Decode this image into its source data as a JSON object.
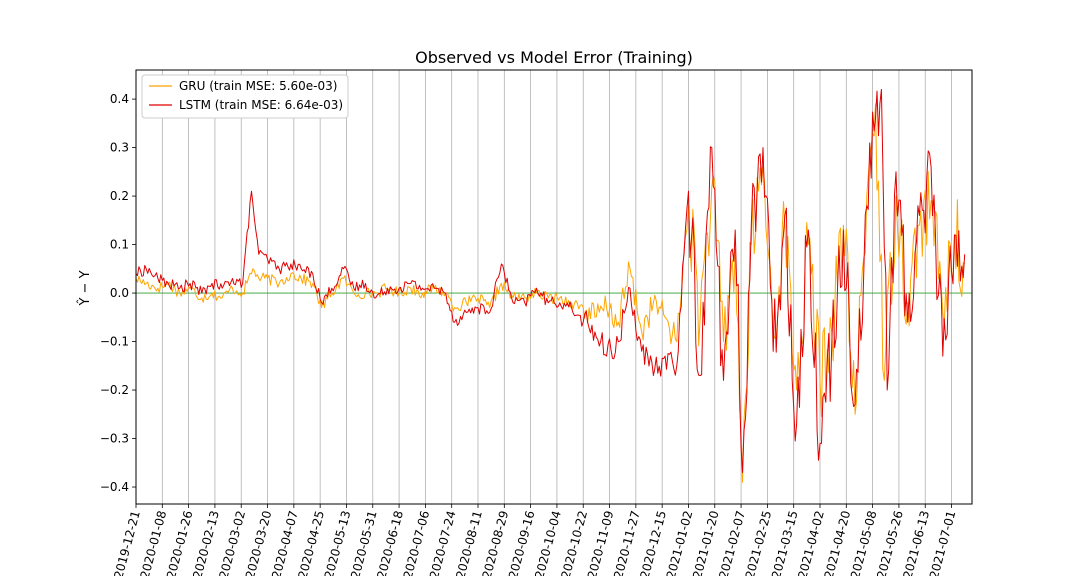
{
  "chart_data": {
    "type": "line",
    "title": "Observed vs Model Error (Training)",
    "ylabel": "Ŷ − Y",
    "xlabel": "",
    "ylim": [
      -0.435,
      0.46
    ],
    "xlim": [
      "2019-12-21",
      "2021-07-15"
    ],
    "yticks": [
      -0.4,
      -0.3,
      -0.2,
      -0.1,
      0.0,
      0.1,
      0.2,
      0.3,
      0.4
    ],
    "ytick_labels": [
      "−0.4",
      "−0.3",
      "−0.2",
      "−0.1",
      "0.0",
      "0.1",
      "0.2",
      "0.3",
      "0.4"
    ],
    "xtick_labels": [
      "2019-12-21",
      "2020-01-08",
      "2020-01-26",
      "2020-02-13",
      "2020-03-02",
      "2020-03-20",
      "2020-04-07",
      "2020-04-25",
      "2020-05-13",
      "2020-05-31",
      "2020-06-18",
      "2020-07-06",
      "2020-07-24",
      "2020-08-11",
      "2020-08-29",
      "2020-09-16",
      "2020-10-04",
      "2020-10-22",
      "2020-11-09",
      "2020-11-27",
      "2020-12-15",
      "2021-01-02",
      "2021-01-20",
      "2021-02-07",
      "2021-02-25",
      "2021-03-15",
      "2021-04-02",
      "2021-04-20",
      "2021-05-08",
      "2021-05-26",
      "2021-06-13",
      "2021-07-01"
    ],
    "grid": "vertical",
    "legend_position": "upper left",
    "zero_line_color": "#2ca02c",
    "series": [
      {
        "name": "GRU (train MSE: 5.60e-03)",
        "color": "#ffa500",
        "points": [
          [
            "2019-12-21",
            0.03
          ],
          [
            "2019-12-28",
            0.02
          ],
          [
            "2020-01-05",
            0.01
          ],
          [
            "2020-01-12",
            0.02
          ],
          [
            "2020-01-20",
            0.0
          ],
          [
            "2020-01-27",
            0.01
          ],
          [
            "2020-02-04",
            -0.01
          ],
          [
            "2020-02-11",
            0.0
          ],
          [
            "2020-02-18",
            -0.01
          ],
          [
            "2020-02-25",
            0.01
          ],
          [
            "2020-03-03",
            0.0
          ],
          [
            "2020-03-10",
            0.05
          ],
          [
            "2020-03-14",
            0.03
          ],
          [
            "2020-03-20",
            0.03
          ],
          [
            "2020-03-28",
            0.02
          ],
          [
            "2020-04-05",
            0.04
          ],
          [
            "2020-04-12",
            0.03
          ],
          [
            "2020-04-20",
            0.02
          ],
          [
            "2020-04-26",
            -0.03
          ],
          [
            "2020-05-03",
            0.0
          ],
          [
            "2020-05-11",
            0.03
          ],
          [
            "2020-05-18",
            0.0
          ],
          [
            "2020-05-26",
            0.0
          ],
          [
            "2020-06-02",
            0.0
          ],
          [
            "2020-06-10",
            0.01
          ],
          [
            "2020-06-18",
            0.0
          ],
          [
            "2020-06-26",
            0.01
          ],
          [
            "2020-07-04",
            0.0
          ],
          [
            "2020-07-12",
            0.01
          ],
          [
            "2020-07-20",
            0.0
          ],
          [
            "2020-07-26",
            -0.03
          ],
          [
            "2020-08-03",
            -0.02
          ],
          [
            "2020-08-11",
            -0.01
          ],
          [
            "2020-08-19",
            -0.03
          ],
          [
            "2020-08-27",
            0.02
          ],
          [
            "2020-09-04",
            -0.01
          ],
          [
            "2020-09-12",
            -0.01
          ],
          [
            "2020-09-20",
            0.0
          ],
          [
            "2020-09-28",
            -0.01
          ],
          [
            "2020-10-06",
            -0.01
          ],
          [
            "2020-10-14",
            -0.02
          ],
          [
            "2020-10-22",
            -0.03
          ],
          [
            "2020-10-30",
            -0.05
          ],
          [
            "2020-11-07",
            -0.03
          ],
          [
            "2020-11-15",
            -0.06
          ],
          [
            "2020-11-23",
            0.05
          ],
          [
            "2020-12-01",
            -0.08
          ],
          [
            "2020-12-09",
            -0.02
          ],
          [
            "2020-12-17",
            -0.05
          ],
          [
            "2020-12-25",
            -0.1
          ],
          [
            "2021-01-02",
            0.18
          ],
          [
            "2021-01-10",
            -0.05
          ],
          [
            "2021-01-18",
            0.22
          ],
          [
            "2021-01-26",
            -0.1
          ],
          [
            "2021-02-03",
            0.09
          ],
          [
            "2021-02-08",
            -0.39
          ],
          [
            "2021-02-14",
            0.1
          ],
          [
            "2021-02-22",
            0.26
          ],
          [
            "2021-03-01",
            -0.08
          ],
          [
            "2021-03-09",
            0.14
          ],
          [
            "2021-03-17",
            -0.2
          ],
          [
            "2021-03-25",
            0.1
          ],
          [
            "2021-04-02",
            -0.18
          ],
          [
            "2021-04-10",
            -0.08
          ],
          [
            "2021-04-18",
            0.14
          ],
          [
            "2021-04-26",
            -0.25
          ],
          [
            "2021-05-04",
            0.2
          ],
          [
            "2021-05-10",
            0.39
          ],
          [
            "2021-05-16",
            -0.18
          ],
          [
            "2021-05-24",
            0.2
          ],
          [
            "2021-06-01",
            -0.02
          ],
          [
            "2021-06-09",
            0.14
          ],
          [
            "2021-06-17",
            0.19
          ],
          [
            "2021-06-25",
            -0.04
          ],
          [
            "2021-07-03",
            0.12
          ],
          [
            "2021-07-10",
            0.06
          ]
        ]
      },
      {
        "name": "LSTM (train MSE: 6.64e-03)",
        "color": "#e00000",
        "points": [
          [
            "2019-12-21",
            0.04
          ],
          [
            "2019-12-28",
            0.05
          ],
          [
            "2020-01-05",
            0.03
          ],
          [
            "2020-01-12",
            0.02
          ],
          [
            "2020-01-20",
            0.01
          ],
          [
            "2020-01-27",
            0.02
          ],
          [
            "2020-02-04",
            0.0
          ],
          [
            "2020-02-11",
            0.02
          ],
          [
            "2020-02-18",
            0.01
          ],
          [
            "2020-02-25",
            0.03
          ],
          [
            "2020-03-03",
            0.02
          ],
          [
            "2020-03-09",
            0.21
          ],
          [
            "2020-03-14",
            0.08
          ],
          [
            "2020-03-20",
            0.07
          ],
          [
            "2020-03-28",
            0.05
          ],
          [
            "2020-04-05",
            0.06
          ],
          [
            "2020-04-12",
            0.05
          ],
          [
            "2020-04-20",
            0.04
          ],
          [
            "2020-04-26",
            -0.02
          ],
          [
            "2020-05-03",
            0.01
          ],
          [
            "2020-05-11",
            0.05
          ],
          [
            "2020-05-18",
            0.01
          ],
          [
            "2020-05-26",
            0.02
          ],
          [
            "2020-06-02",
            -0.01
          ],
          [
            "2020-06-10",
            0.01
          ],
          [
            "2020-06-18",
            0.01
          ],
          [
            "2020-06-26",
            0.02
          ],
          [
            "2020-07-04",
            0.01
          ],
          [
            "2020-07-12",
            0.01
          ],
          [
            "2020-07-20",
            0.0
          ],
          [
            "2020-07-26",
            -0.06
          ],
          [
            "2020-08-03",
            -0.04
          ],
          [
            "2020-08-11",
            -0.03
          ],
          [
            "2020-08-19",
            -0.04
          ],
          [
            "2020-08-27",
            0.06
          ],
          [
            "2020-09-04",
            -0.02
          ],
          [
            "2020-09-12",
            -0.02
          ],
          [
            "2020-09-20",
            0.01
          ],
          [
            "2020-09-28",
            -0.02
          ],
          [
            "2020-10-06",
            -0.02
          ],
          [
            "2020-10-14",
            -0.03
          ],
          [
            "2020-10-22",
            -0.06
          ],
          [
            "2020-10-30",
            -0.08
          ],
          [
            "2020-11-07",
            -0.13
          ],
          [
            "2020-11-15",
            -0.1
          ],
          [
            "2020-11-23",
            0.01
          ],
          [
            "2020-12-01",
            -0.12
          ],
          [
            "2020-12-09",
            -0.17
          ],
          [
            "2020-12-17",
            -0.13
          ],
          [
            "2020-12-25",
            -0.15
          ],
          [
            "2021-01-02",
            0.21
          ],
          [
            "2021-01-10",
            -0.17
          ],
          [
            "2021-01-18",
            0.3
          ],
          [
            "2021-01-26",
            -0.18
          ],
          [
            "2021-02-03",
            0.13
          ],
          [
            "2021-02-08",
            -0.37
          ],
          [
            "2021-02-14",
            0.14
          ],
          [
            "2021-02-22",
            0.3
          ],
          [
            "2021-03-01",
            -0.12
          ],
          [
            "2021-03-09",
            0.16
          ],
          [
            "2021-03-17",
            -0.27
          ],
          [
            "2021-03-25",
            0.13
          ],
          [
            "2021-04-02",
            -0.31
          ],
          [
            "2021-04-10",
            -0.11
          ],
          [
            "2021-04-18",
            0.13
          ],
          [
            "2021-04-26",
            -0.23
          ],
          [
            "2021-05-04",
            0.18
          ],
          [
            "2021-05-10",
            0.36
          ],
          [
            "2021-05-14",
            0.42
          ],
          [
            "2021-05-18",
            -0.2
          ],
          [
            "2021-05-24",
            0.25
          ],
          [
            "2021-06-01",
            -0.06
          ],
          [
            "2021-06-09",
            0.16
          ],
          [
            "2021-06-17",
            0.26
          ],
          [
            "2021-06-25",
            -0.13
          ],
          [
            "2021-07-03",
            0.12
          ],
          [
            "2021-07-10",
            0.08
          ]
        ]
      }
    ]
  }
}
